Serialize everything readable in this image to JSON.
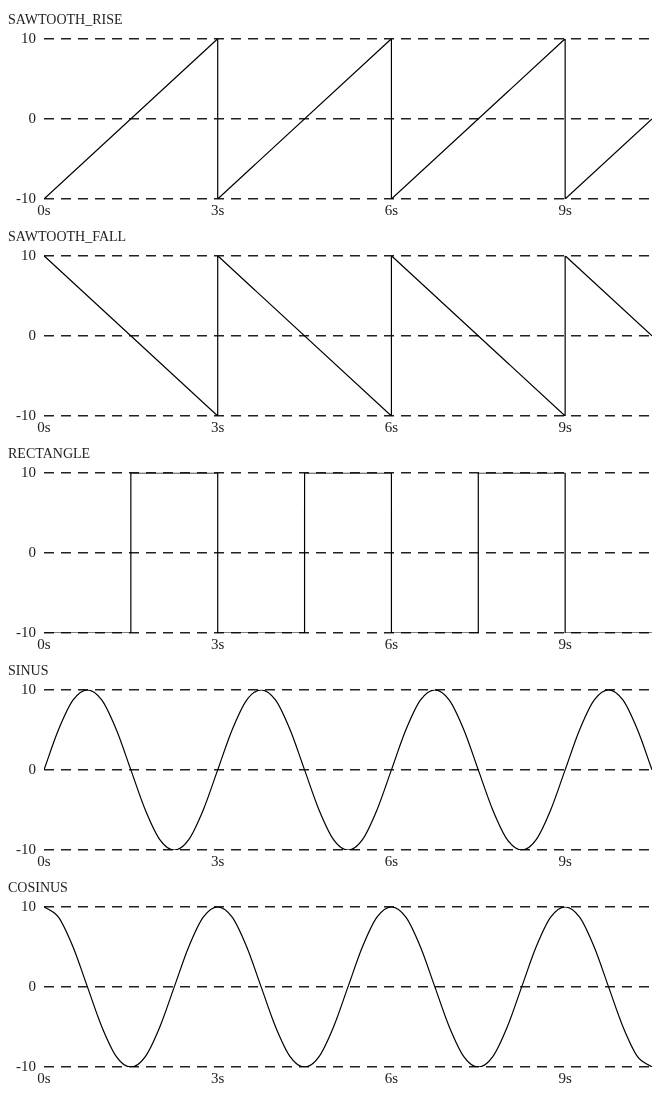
{
  "chart_data": [
    {
      "type": "line",
      "title": "SAWTOOTH_RISE",
      "x": [
        0,
        3,
        3,
        6,
        6,
        9,
        9,
        10.5
      ],
      "values": [
        -10,
        10,
        -10,
        10,
        -10,
        10,
        -10,
        0
      ],
      "color": "#000000",
      "xlim": [
        0,
        10.5
      ],
      "xticks": [
        {
          "value": 0,
          "label": "0s"
        },
        {
          "value": 3,
          "label": "3s"
        },
        {
          "value": 6,
          "label": "6s"
        },
        {
          "value": 9,
          "label": "9s"
        }
      ],
      "ylim": [
        -10,
        10
      ],
      "yticks": [
        -10,
        0,
        10
      ],
      "grid": "y",
      "marker": "none",
      "line_style": "solid",
      "legend": false
    },
    {
      "type": "line",
      "title": "SAWTOOTH_FALL",
      "x": [
        0,
        3,
        3,
        6,
        6,
        9,
        9,
        10.5
      ],
      "values": [
        10,
        -10,
        10,
        -10,
        10,
        -10,
        10,
        0
      ],
      "color": "#000000",
      "xlim": [
        0,
        10.5
      ],
      "xticks": [
        {
          "value": 0,
          "label": "0s"
        },
        {
          "value": 3,
          "label": "3s"
        },
        {
          "value": 6,
          "label": "6s"
        },
        {
          "value": 9,
          "label": "9s"
        }
      ],
      "ylim": [
        -10,
        10
      ],
      "yticks": [
        -10,
        0,
        10
      ],
      "grid": "y",
      "marker": "none",
      "line_style": "solid",
      "legend": false
    },
    {
      "type": "line",
      "title": "RECTANGLE",
      "x": [
        0,
        1.5,
        1.5,
        3,
        3,
        4.5,
        4.5,
        6,
        6,
        7.5,
        7.5,
        9,
        9,
        10.5
      ],
      "values": [
        -10,
        -10,
        10,
        10,
        -10,
        -10,
        10,
        10,
        -10,
        -10,
        10,
        10,
        -10,
        -10
      ],
      "color": "#000000",
      "xlim": [
        0,
        10.5
      ],
      "xticks": [
        {
          "value": 0,
          "label": "0s"
        },
        {
          "value": 3,
          "label": "3s"
        },
        {
          "value": 6,
          "label": "6s"
        },
        {
          "value": 9,
          "label": "9s"
        }
      ],
      "ylim": [
        -10,
        10
      ],
      "yticks": [
        -10,
        0,
        10
      ],
      "grid": "y",
      "marker": "none",
      "line_style": "solid",
      "legend": false
    },
    {
      "type": "line",
      "title": "SINUS",
      "x": [
        0,
        0.25,
        0.5,
        0.75,
        1,
        1.25,
        1.5,
        1.75,
        2,
        2.25,
        2.5,
        2.75,
        3,
        3.25,
        3.5,
        3.75,
        4,
        4.25,
        4.5,
        4.75,
        5,
        5.25,
        5.5,
        5.75,
        6,
        6.25,
        6.5,
        6.75,
        7,
        7.25,
        7.5,
        7.75,
        8,
        8.25,
        8.5,
        8.75,
        9,
        9.25,
        9.5,
        9.75,
        10,
        10.25,
        10.5
      ],
      "values": [
        0,
        5,
        8.7,
        10,
        8.7,
        5,
        0,
        -5,
        -8.7,
        -10,
        -8.7,
        -5,
        0,
        5,
        8.7,
        10,
        8.7,
        5,
        0,
        -5,
        -8.7,
        -10,
        -8.7,
        -5,
        0,
        5,
        8.7,
        10,
        8.7,
        5,
        0,
        -5,
        -8.7,
        -10,
        -8.7,
        -5,
        0,
        5,
        8.7,
        10,
        8.7,
        5,
        0
      ],
      "color": "#000000",
      "xlim": [
        0,
        10.5
      ],
      "xticks": [
        {
          "value": 0,
          "label": "0s"
        },
        {
          "value": 3,
          "label": "3s"
        },
        {
          "value": 6,
          "label": "6s"
        },
        {
          "value": 9,
          "label": "9s"
        }
      ],
      "ylim": [
        -10,
        10
      ],
      "yticks": [
        -10,
        0,
        10
      ],
      "grid": "y",
      "marker": "none",
      "line_style": "solid",
      "legend": false
    },
    {
      "type": "line",
      "title": "COSINUS",
      "x": [
        0,
        0.25,
        0.5,
        0.75,
        1,
        1.25,
        1.5,
        1.75,
        2,
        2.25,
        2.5,
        2.75,
        3,
        3.25,
        3.5,
        3.75,
        4,
        4.25,
        4.5,
        4.75,
        5,
        5.25,
        5.5,
        5.75,
        6,
        6.25,
        6.5,
        6.75,
        7,
        7.25,
        7.5,
        7.75,
        8,
        8.25,
        8.5,
        8.75,
        9,
        9.25,
        9.5,
        9.75,
        10,
        10.25,
        10.5
      ],
      "values": [
        10,
        8.7,
        5,
        0,
        -5,
        -8.7,
        -10,
        -8.7,
        -5,
        0,
        5,
        8.7,
        10,
        8.7,
        5,
        0,
        -5,
        -8.7,
        -10,
        -8.7,
        -5,
        0,
        5,
        8.7,
        10,
        8.7,
        5,
        0,
        -5,
        -8.7,
        -10,
        -8.7,
        -5,
        0,
        5,
        8.7,
        10,
        8.7,
        5,
        0,
        -5,
        -8.7,
        -10
      ],
      "color": "#000000",
      "xlim": [
        0,
        10.5
      ],
      "xticks": [
        {
          "value": 0,
          "label": "0s"
        },
        {
          "value": 3,
          "label": "3s"
        },
        {
          "value": 6,
          "label": "6s"
        },
        {
          "value": 9,
          "label": "9s"
        }
      ],
      "ylim": [
        -10,
        10
      ],
      "yticks": [
        -10,
        0,
        10
      ],
      "grid": "y",
      "marker": "none",
      "line_style": "solid",
      "legend": false
    }
  ]
}
